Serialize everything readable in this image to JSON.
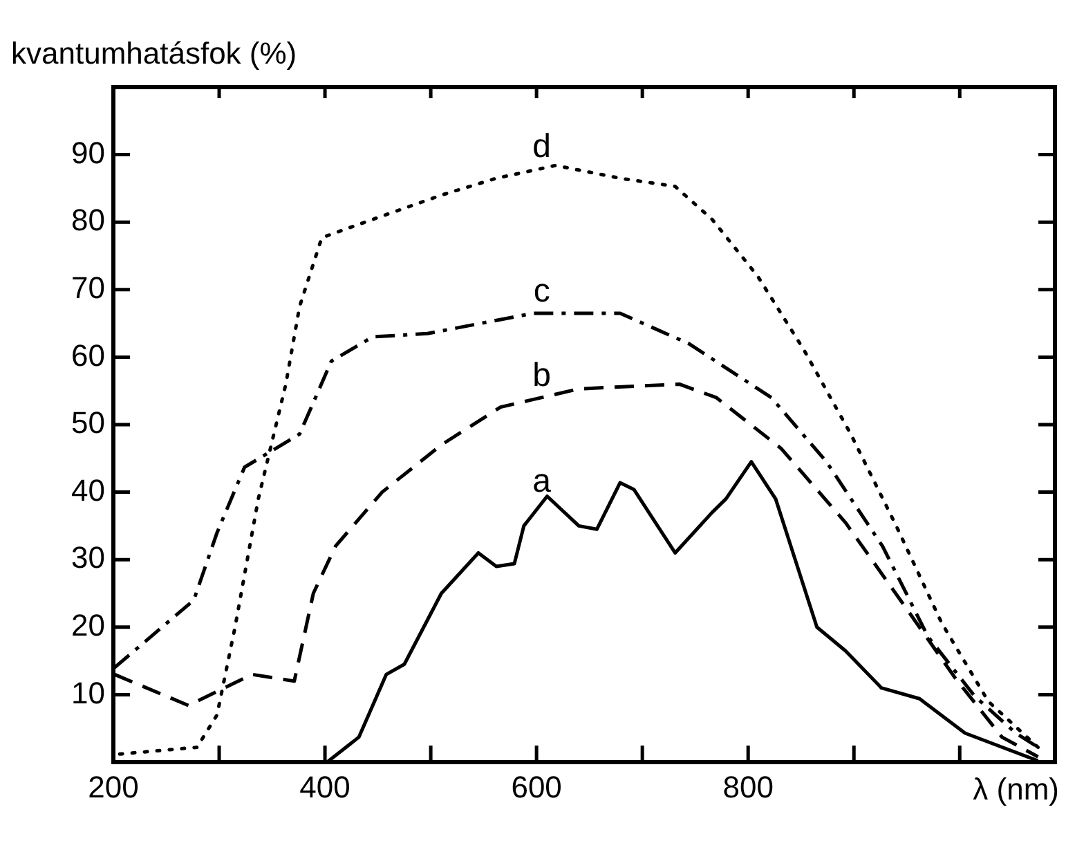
{
  "chart_data": {
    "type": "line",
    "xlabel": "λ (nm)",
    "ylabel": "kvantumhatásfok (%)",
    "xlim": [
      200,
      1090
    ],
    "ylim": [
      0,
      100
    ],
    "xticks": [
      200,
      {
        "value": 300,
        "label": null
      },
      400,
      {
        "value": 500,
        "label": null
      },
      600,
      {
        "value": 700,
        "label": null
      },
      800,
      {
        "value": 900,
        "label": null
      },
      {
        "value": 1000,
        "label": null
      }
    ],
    "yticks": [
      10,
      20,
      30,
      40,
      50,
      60,
      70,
      80,
      90
    ],
    "grid": false,
    "legend": false,
    "marker": "none",
    "series": [
      {
        "color": "#000000",
        "line_style": "solid",
        "x": [
          402,
          432,
          458,
          475,
          510,
          545,
          562,
          579,
          588,
          610,
          640,
          657,
          679,
          692,
          731,
          766,
          779,
          803,
          826,
          865,
          892,
          926,
          962,
          1005,
          1074
        ],
        "values": [
          0,
          3.7,
          13,
          14.5,
          25,
          31,
          29,
          29.4,
          35,
          39.4,
          35,
          34.5,
          41.4,
          40.4,
          31,
          37,
          39,
          44.5,
          39,
          20,
          16.5,
          11,
          9.4,
          4.3,
          0.2
        ]
      },
      {
        "color": "#000000",
        "line_style": "dashed",
        "x": [
          201,
          271,
          331,
          371,
          389,
          410,
          454,
          510,
          566,
          640,
          735,
          770,
          831,
          892,
          953,
          996,
          1040,
          1074
        ],
        "values": [
          13,
          8.4,
          13,
          12,
          25,
          32,
          40,
          47,
          52.6,
          55.3,
          56,
          54,
          46.5,
          35.5,
          22,
          12.4,
          3.7,
          0.8
        ]
      },
      {
        "color": "#000000",
        "line_style": "dashdot",
        "x": [
          201,
          276,
          298,
          324,
          376,
          406,
          445,
          497,
          597,
          679,
          744,
          822,
          874,
          927,
          970,
          1014,
          1053,
          1074
        ],
        "values": [
          14,
          24,
          34,
          43.7,
          48.6,
          59.4,
          63,
          63.5,
          66.5,
          66.5,
          62,
          54,
          44.5,
          32,
          18.6,
          9.8,
          4.3,
          2.2
        ]
      },
      {
        "color": "#000000",
        "line_style": "dotted",
        "x": [
          206,
          279,
          298,
          315,
          337,
          363,
          376,
          397,
          445,
          510,
          562,
          618,
          679,
          731,
          766,
          809,
          853,
          897,
          940,
          983,
          1027,
          1074
        ],
        "values": [
          1.2,
          2.2,
          7,
          20,
          39,
          56,
          67.5,
          77.7,
          80.4,
          84,
          86.5,
          88.4,
          86.5,
          85.3,
          80.4,
          72,
          61,
          48.6,
          35,
          20.6,
          9,
          2.2
        ]
      }
    ],
    "annotations": [
      "a",
      "b",
      "c",
      "d"
    ]
  }
}
